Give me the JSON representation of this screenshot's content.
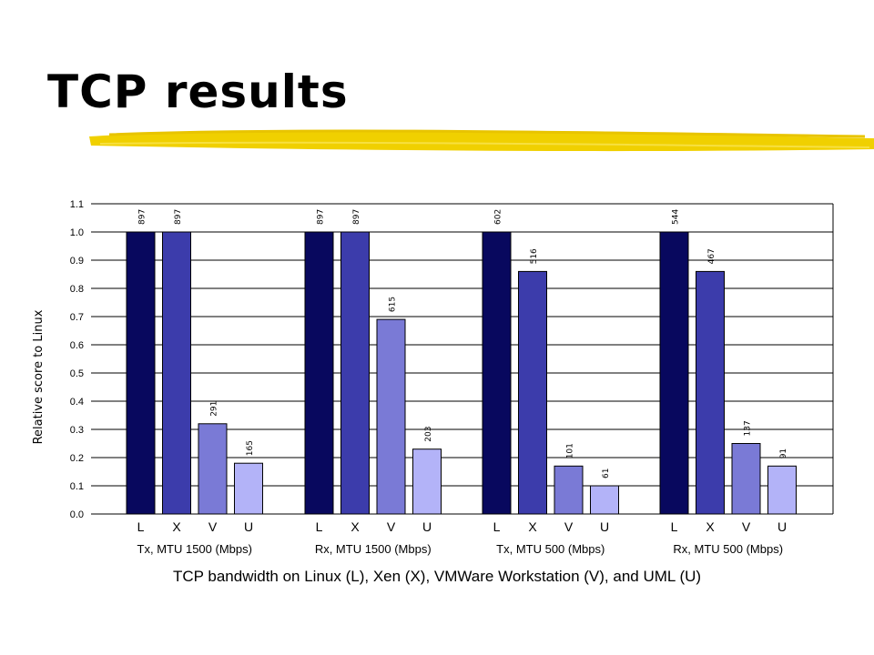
{
  "slide": {
    "title": "TCP results"
  },
  "chart_data": {
    "type": "bar",
    "ylabel": "Relative score to Linux",
    "ylim": [
      0,
      1.1
    ],
    "yticks": [
      "0.0",
      "0.1",
      "0.2",
      "0.3",
      "0.4",
      "0.5",
      "0.6",
      "0.7",
      "0.8",
      "0.9",
      "1.0",
      "1.1"
    ],
    "grid": true,
    "bar_letters": [
      "L",
      "X",
      "V",
      "U"
    ],
    "bar_colors": [
      "#08085e",
      "#3c3cab",
      "#7a7ad6",
      "#b3b3f8"
    ],
    "groups": [
      {
        "label": "Tx, MTU 1500",
        "unit": "(Mbps)",
        "values": [
          1.0,
          1.0,
          0.32,
          0.18
        ],
        "data_labels": [
          "897",
          "897",
          "291",
          "165"
        ]
      },
      {
        "label": "Rx, MTU 1500",
        "unit": "(Mbps)",
        "values": [
          1.0,
          1.0,
          0.69,
          0.23
        ],
        "data_labels": [
          "897",
          "897",
          "615",
          "203"
        ]
      },
      {
        "label": "Tx, MTU 500",
        "unit": "(Mbps)",
        "values": [
          1.0,
          0.86,
          0.17,
          0.1
        ],
        "data_labels": [
          "602",
          "516",
          "101",
          "61"
        ]
      },
      {
        "label": "Rx, MTU 500",
        "unit": "(Mbps)",
        "values": [
          1.0,
          0.86,
          0.25,
          0.17
        ],
        "data_labels": [
          "544",
          "467",
          "137",
          "91"
        ]
      }
    ],
    "caption": "TCP bandwidth on Linux (L), Xen (X), VMWare Workstation (V), and UML (U)"
  }
}
